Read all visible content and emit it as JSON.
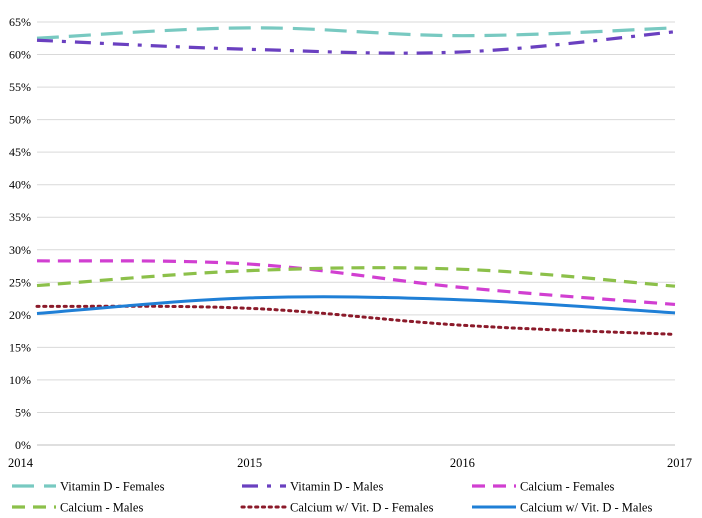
{
  "chart_data": {
    "type": "line",
    "title": "",
    "xlabel": "",
    "ylabel": "",
    "x": [
      "2014",
      "2015",
      "2016",
      "2017"
    ],
    "ylim": [
      0,
      65
    ],
    "yticks": [
      0,
      5,
      10,
      15,
      20,
      25,
      30,
      35,
      40,
      45,
      50,
      55,
      60,
      65
    ],
    "ytick_suffix": "%",
    "grid": true,
    "legend_position": "bottom",
    "series": [
      {
        "name": "Vitamin D - Females",
        "values": [
          62.5,
          64.1,
          62.9,
          64.1
        ],
        "color": "#78c9c1",
        "style": "longdash"
      },
      {
        "name": "Vitamin D - Males",
        "values": [
          62.2,
          60.8,
          60.4,
          63.5
        ],
        "color": "#6a40c0",
        "style": "dashdot"
      },
      {
        "name": "Calcium - Females",
        "values": [
          28.3,
          27.8,
          24.2,
          21.6
        ],
        "color": "#d13fd1",
        "style": "dash"
      },
      {
        "name": "Calcium - Males",
        "values": [
          24.5,
          26.8,
          27.0,
          24.4
        ],
        "color": "#8cc04a",
        "style": "dash"
      },
      {
        "name": "Calcium w/ Vit. D - Females",
        "values": [
          21.3,
          21.0,
          18.4,
          17.0
        ],
        "color": "#8b1a2a",
        "style": "dot"
      },
      {
        "name": "Calcium w/ Vit. D  - Males",
        "values": [
          20.2,
          22.6,
          22.3,
          20.3
        ],
        "color": "#1f7fd6",
        "style": "solid"
      }
    ]
  }
}
